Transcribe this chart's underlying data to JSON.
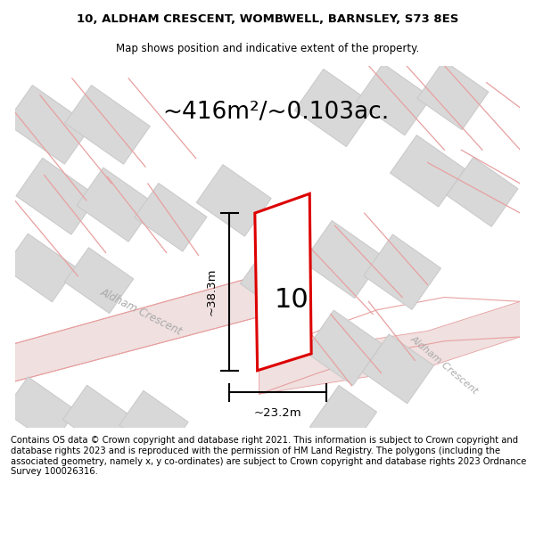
{
  "title_line1": "10, ALDHAM CRESCENT, WOMBWELL, BARNSLEY, S73 8ES",
  "title_line2": "Map shows position and indicative extent of the property.",
  "area_text": "~416m²/~0.103ac.",
  "property_number": "10",
  "dim_width": "~23.2m",
  "dim_height": "~38.3m",
  "street_label1": "Aldham Crescent",
  "street_label2": "Aldham Crescent",
  "footer_text": "Contains OS data © Crown copyright and database right 2021. This information is subject to Crown copyright and database rights 2023 and is reproduced with the permission of HM Land Registry. The polygons (including the associated geometry, namely x, y co-ordinates) are subject to Crown copyright and database rights 2023 Ordnance Survey 100026316.",
  "bg_color": "#ffffff",
  "map_bg": "#ffffff",
  "building_fill": "#d8d8d8",
  "building_edge": "#c8c8c8",
  "road_line_color": "#e8a0a0",
  "road_fill_color": "#f0e0e0",
  "property_outline_color": "#dd0000",
  "property_fill": "#ffffff",
  "dim_line_color": "#000000",
  "street_text_color": "#aaaaaa",
  "title_fontsize": 9.5,
  "subtitle_fontsize": 8.5,
  "area_fontsize": 19,
  "number_fontsize": 22,
  "footer_fontsize": 7.2
}
